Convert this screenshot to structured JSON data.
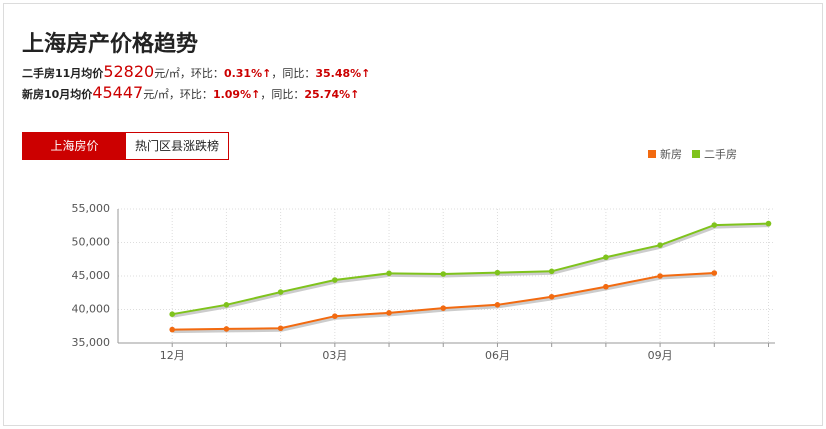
{
  "header": {
    "title": "上海房产价格趋势",
    "stats": [
      {
        "label": "二手房11月均价",
        "price": "52820",
        "unit": "元/㎡",
        "mom_label": "，环比：",
        "mom": "0.31%↑",
        "yoy_label": "，同比：",
        "yoy": "35.48%↑"
      },
      {
        "label": "新房10月均价",
        "price": "45447",
        "unit": "元/㎡",
        "mom_label": "，环比：",
        "mom": "1.09%↑",
        "yoy_label": "，同比：",
        "yoy": "25.74%↑"
      }
    ]
  },
  "tabs": [
    "上海房价",
    "热门区县涨跌榜"
  ],
  "chart_data": {
    "type": "line",
    "categories": [
      "12月",
      null,
      null,
      "03月",
      null,
      null,
      "06月",
      null,
      null,
      "09月",
      null,
      null
    ],
    "series": [
      {
        "name": "新房",
        "color": "#f26a10",
        "values": [
          37000,
          37100,
          37200,
          39000,
          39500,
          40200,
          40700,
          41900,
          43400,
          45000,
          45447,
          null
        ]
      },
      {
        "name": "二手房",
        "color": "#7fc31c",
        "values": [
          39300,
          40700,
          42600,
          44400,
          45400,
          45300,
          45500,
          45700,
          47800,
          49600,
          52600,
          52820
        ]
      }
    ],
    "ylim": [
      35000,
      55000
    ],
    "yticks": [
      {
        "value": 35000,
        "label": "35,000"
      },
      {
        "value": 40000,
        "label": "40,000"
      },
      {
        "value": 45000,
        "label": "45,000"
      },
      {
        "value": 50000,
        "label": "50,000"
      },
      {
        "value": 55000,
        "label": "55,000"
      }
    ],
    "grid": true,
    "legend": "top-right"
  }
}
